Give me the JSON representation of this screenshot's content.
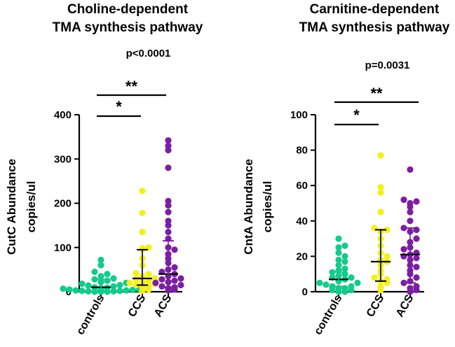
{
  "chart_data": [
    {
      "type": "scatter",
      "title_lines": [
        "Choline-dependent",
        "TMA synthesis pathway"
      ],
      "ylabel_lines": [
        "CutC Abundance",
        "copies/ul"
      ],
      "categories": [
        "controls",
        "CCS",
        "ACS"
      ],
      "colors": [
        "#16c98d",
        "#f2f01a",
        "#7b1fa2"
      ],
      "ylim": [
        0,
        400
      ],
      "yticks": [
        0,
        100,
        200,
        300,
        400
      ],
      "ytick_labels": [
        "0",
        "100",
        "200",
        "300",
        "400"
      ],
      "p_value": "p<0.0001",
      "significance": [
        {
          "from": "controls",
          "to": "ACS",
          "label": "**"
        },
        {
          "from": "controls",
          "to": "CCS",
          "label": "*"
        }
      ],
      "series": [
        {
          "name": "controls",
          "median": 10,
          "q1": 3,
          "q3": 28,
          "values": [
            72,
            60,
            45,
            40,
            35,
            30,
            28,
            25,
            22,
            20,
            18,
            15,
            12,
            10,
            8,
            7,
            5,
            4,
            3,
            2,
            1,
            1,
            0,
            0,
            0,
            2,
            6,
            9,
            14,
            3
          ]
        },
        {
          "name": "CCS",
          "median": 30,
          "q1": 15,
          "q3": 95,
          "values": [
            228,
            178,
            135,
            100,
            98,
            95,
            75,
            60,
            42,
            40,
            35,
            30,
            28,
            25,
            22,
            20,
            18,
            15,
            12,
            10,
            5,
            2
          ]
        },
        {
          "name": "ACS",
          "median": 40,
          "q1": 10,
          "q3": 115,
          "values": [
            342,
            330,
            320,
            280,
            205,
            195,
            180,
            160,
            150,
            135,
            120,
            100,
            95,
            85,
            75,
            65,
            55,
            50,
            45,
            40,
            35,
            30,
            28,
            25,
            22,
            20,
            15,
            12,
            10,
            8,
            5,
            3
          ]
        }
      ]
    },
    {
      "type": "scatter",
      "title_lines": [
        "Carnitine-dependent",
        "TMA synthesis pathway"
      ],
      "ylabel_lines": [
        "CntA Abundance",
        "copies/ul"
      ],
      "categories": [
        "controls",
        "CCS",
        "ACS"
      ],
      "colors": [
        "#16c98d",
        "#f2f01a",
        "#7b1fa2"
      ],
      "ylim": [
        0,
        100
      ],
      "yticks": [
        0,
        20,
        40,
        60,
        80,
        100
      ],
      "ytick_labels": [
        "0",
        "20",
        "40",
        "60",
        "80",
        "100"
      ],
      "p_value": "p=0.0031",
      "significance": [
        {
          "from": "controls",
          "to": "ACS",
          "label": "**"
        },
        {
          "from": "controls",
          "to": "CCS",
          "label": "*"
        }
      ],
      "series": [
        {
          "name": "controls",
          "median": 7,
          "q1": 3,
          "q3": 11,
          "values": [
            30,
            26,
            25,
            22,
            20,
            18,
            17,
            15,
            13,
            12,
            11,
            10,
            9,
            8,
            7,
            6,
            5,
            4,
            3,
            3,
            2,
            1,
            1,
            0,
            0,
            2,
            5,
            8
          ]
        },
        {
          "name": "CCS",
          "median": 17,
          "q1": 6,
          "q3": 35,
          "values": [
            77,
            59,
            56,
            45,
            36,
            35,
            34,
            30,
            26,
            22,
            20,
            18,
            17,
            15,
            12,
            10,
            8,
            7,
            6,
            5,
            3,
            1
          ]
        },
        {
          "name": "ACS",
          "median": 21,
          "q1": 5,
          "q3": 36,
          "values": [
            69,
            52,
            51,
            50,
            48,
            45,
            40,
            36,
            35,
            34,
            30,
            28,
            25,
            24,
            22,
            21,
            20,
            19,
            18,
            15,
            14,
            12,
            10,
            8,
            6,
            5,
            3,
            2,
            1,
            0
          ]
        }
      ]
    }
  ]
}
